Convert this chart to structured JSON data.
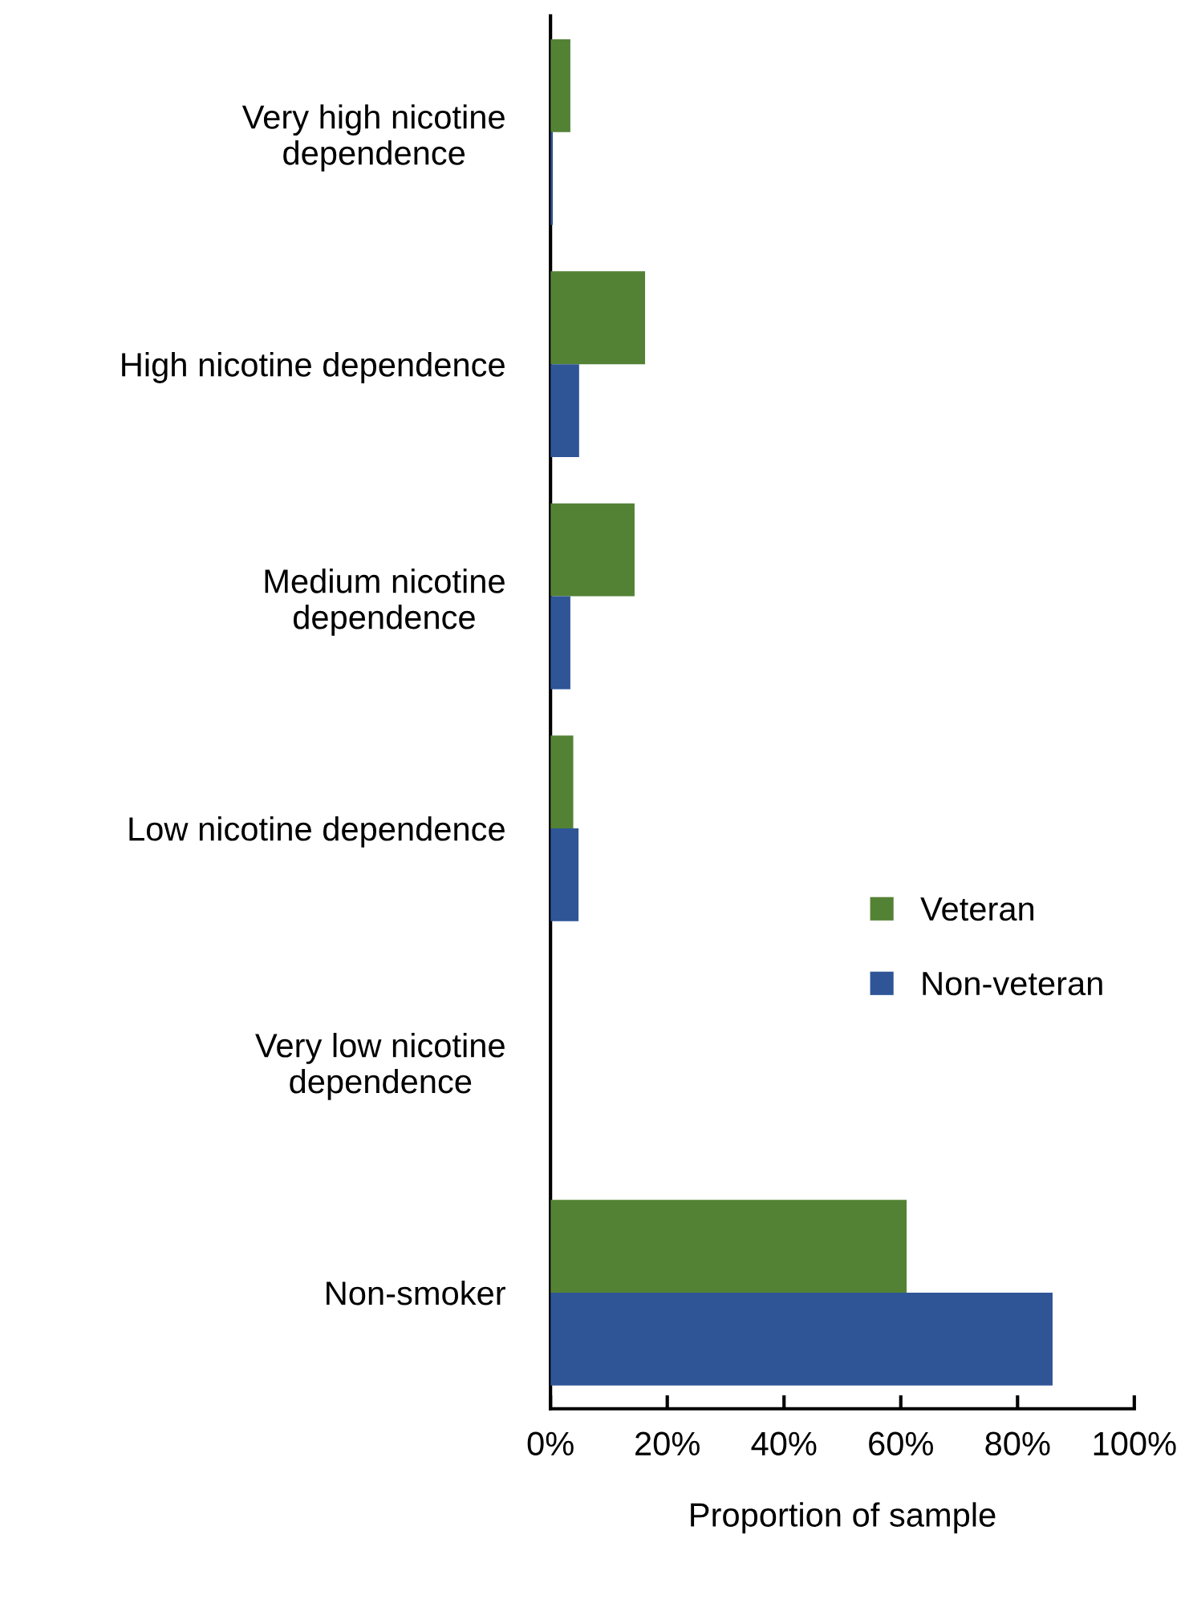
{
  "chart_data": {
    "type": "bar",
    "orientation": "horizontal",
    "xlabel": "Proportion of sample",
    "categories": [
      "Very high nicotine\ndependence",
      "High nicotine dependence",
      "Medium nicotine\ndependence",
      "Low nicotine dependence",
      "Very low nicotine\ndependence",
      "Non-smoker"
    ],
    "series": [
      {
        "name": "Veteran",
        "color": "#548235",
        "values": [
          3.4,
          16.2,
          14.4,
          3.9,
          0,
          61.0
        ]
      },
      {
        "name": "Non-veteran",
        "color": "#2f5597",
        "values": [
          0.4,
          4.9,
          3.4,
          4.8,
          0,
          86.0
        ]
      }
    ],
    "xlim": [
      0,
      100
    ],
    "xticks": [
      {
        "value": 0,
        "label": "0%"
      },
      {
        "value": 20,
        "label": "20%"
      },
      {
        "value": 40,
        "label": "40%"
      },
      {
        "value": 60,
        "label": "60%"
      },
      {
        "value": 80,
        "label": "80%"
      },
      {
        "value": 100,
        "label": "100%"
      }
    ],
    "grid": false,
    "legend": "right"
  }
}
